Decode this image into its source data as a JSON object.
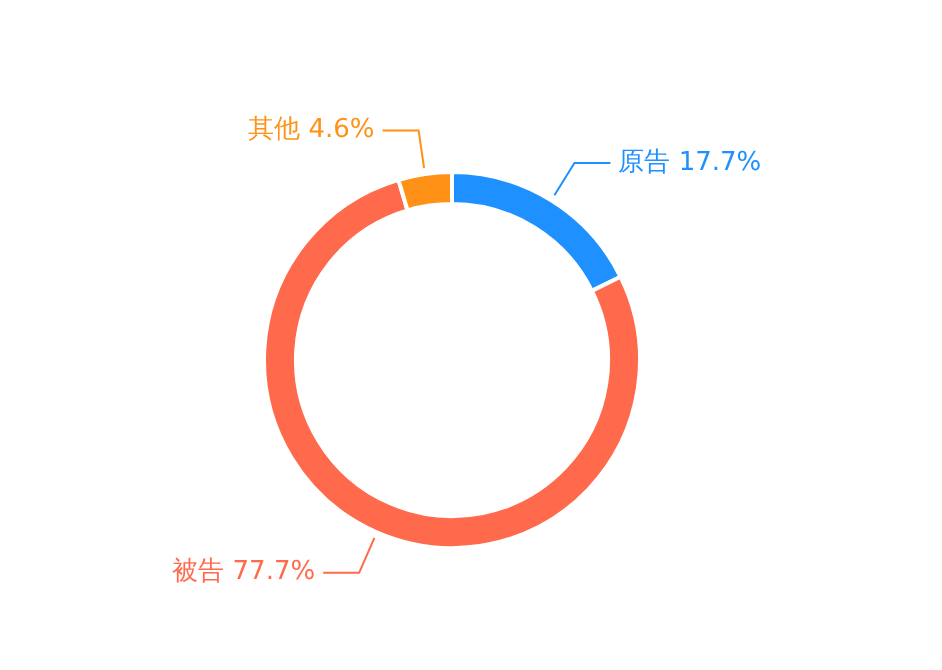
{
  "chart_data": {
    "type": "donut",
    "categories": [
      "原告",
      "被告",
      "其他"
    ],
    "values": [
      17.7,
      77.7,
      4.6
    ],
    "value_labels": [
      "17.7%",
      "77.7%",
      "4.6%"
    ],
    "colors": [
      "#1e90ff",
      "#ff6a4c",
      "#ff9117"
    ],
    "legend": false
  }
}
